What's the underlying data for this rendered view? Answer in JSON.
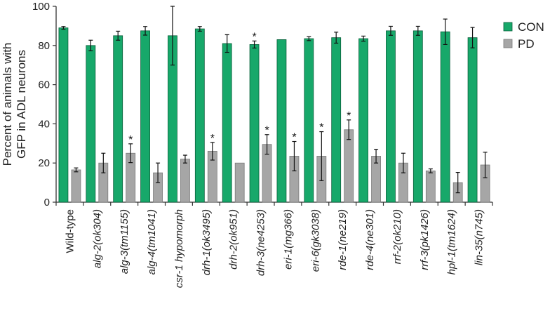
{
  "chart_data": {
    "type": "bar",
    "title": "",
    "xlabel": "",
    "ylabel_lines": [
      "Percent of animals with",
      "GFP in ADL neurons"
    ],
    "ylim": [
      0,
      100
    ],
    "yticks": [
      0,
      20,
      40,
      60,
      80,
      100
    ],
    "grid": false,
    "legend_position": "top-right",
    "categories": [
      {
        "label": "Wild-type",
        "italic": false
      },
      {
        "label": "alg-2(ok304)",
        "italic": true
      },
      {
        "label": "alg-3(tm1155)",
        "italic": true
      },
      {
        "label": "alg-4(tm1041)",
        "italic": true
      },
      {
        "label": "csr-1 hypomorph",
        "italic": true
      },
      {
        "label": "drh-1(ok3495)",
        "italic": true
      },
      {
        "label": "drh-2(ok951)",
        "italic": true
      },
      {
        "label": "drh-3(ne4253)",
        "italic": true
      },
      {
        "label": "eri-1(mg366)",
        "italic": true
      },
      {
        "label": "eri-6(gk3038)",
        "italic": true
      },
      {
        "label": "rde-1(ne219)",
        "italic": true
      },
      {
        "label": "rde-4(ne301)",
        "italic": true
      },
      {
        "label": "rrf-2(ok210)",
        "italic": true
      },
      {
        "label": "rrf-3(pk1426)",
        "italic": true
      },
      {
        "label": "hpl-1(tm1624)",
        "italic": true
      },
      {
        "label": "lin-35(n745)",
        "italic": true
      }
    ],
    "series": [
      {
        "name": "CON",
        "color": "#17a86a",
        "edge": "#0b5e3b",
        "values": [
          89,
          80,
          85,
          87.5,
          85,
          88.5,
          81,
          80.5,
          83,
          83.5,
          84,
          83.5,
          87.5,
          87.5,
          87,
          84
        ],
        "errors": [
          0.7,
          2.7,
          2.3,
          2.2,
          15,
          1.2,
          4.5,
          1.8,
          0,
          1,
          2.8,
          1.3,
          2.3,
          2.3,
          6.5,
          5.2
        ],
        "significant": [
          false,
          false,
          false,
          false,
          false,
          false,
          false,
          true,
          false,
          false,
          false,
          false,
          false,
          false,
          false,
          false
        ]
      },
      {
        "name": "PD",
        "color": "#a6a6a6",
        "edge": "#7a7a7a",
        "values": [
          16.5,
          20,
          25,
          15,
          22,
          26,
          20,
          29.5,
          23.5,
          23.5,
          37,
          23.5,
          20,
          16,
          10,
          19
        ],
        "errors": [
          1,
          5,
          4.8,
          5,
          2,
          4.5,
          0,
          5,
          7.5,
          12.5,
          5,
          3.5,
          5,
          1,
          5.2,
          6.5
        ],
        "significant": [
          false,
          false,
          true,
          false,
          false,
          true,
          false,
          true,
          true,
          true,
          true,
          false,
          false,
          false,
          false,
          false
        ]
      }
    ],
    "significance_marker": "*"
  }
}
